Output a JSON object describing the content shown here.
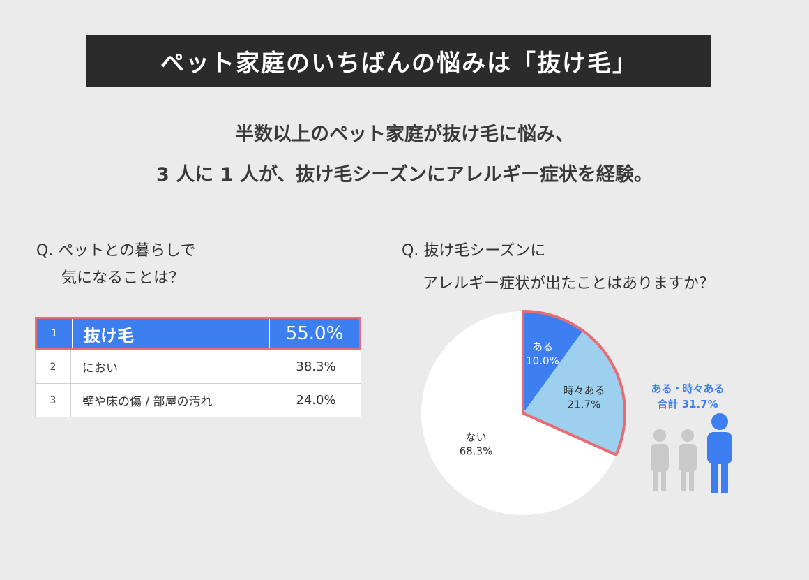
{
  "header": {
    "title": "ペット家庭のいちばんの悩みは「抜け毛」"
  },
  "summary": {
    "line1": "半数以上のペット家庭が抜け毛に悩み、",
    "line2": "3 人に 1 人が、抜け毛シーズンにアレルギー症状を経験。"
  },
  "left_question": {
    "line1": "Q. ペットとの暮らしで",
    "line2": "気になることは？"
  },
  "right_question": {
    "line1": "Q. 抜け毛シーズンに",
    "line2": "アレルギー症状が出たことはありますか？"
  },
  "rank_table": {
    "rows": [
      {
        "rank": "1",
        "label": "抜け毛",
        "value": "55.0%"
      },
      {
        "rank": "2",
        "label": "におい",
        "value": "38.3%"
      },
      {
        "rank": "3",
        "label": "壁や床の傷 / 部屋の汚れ",
        "value": "24.0%"
      }
    ]
  },
  "totals": {
    "line1": "ある・時々ある",
    "line2": "合計 31.7%"
  },
  "colors": {
    "accent_blue": "#3d7ef0",
    "light_blue": "#9dd0ee",
    "highlight_red": "#e96b74",
    "person_gray": "#c9c9c9"
  },
  "chart_data": [
    {
      "type": "table",
      "columns": [
        "rank",
        "item",
        "percent"
      ],
      "rows": [
        [
          "1",
          "抜け毛",
          55.0
        ],
        [
          "2",
          "におい",
          38.3
        ],
        [
          "3",
          "壁や床の傷 / 部屋の汚れ",
          24.0
        ]
      ]
    },
    {
      "type": "pie",
      "slices": [
        {
          "label": "ある",
          "value": 10.0,
          "display": "10.0%",
          "color": "#3d7ef0",
          "text_color": "#ffffff"
        },
        {
          "label": "時々ある",
          "value": 21.7,
          "display": "21.7%",
          "color": "#9dd0ee",
          "text_color": "#333333"
        },
        {
          "label": "ない",
          "value": 68.3,
          "display": "68.3%",
          "color": "#ffffff",
          "text_color": "#333333"
        }
      ]
    }
  ]
}
